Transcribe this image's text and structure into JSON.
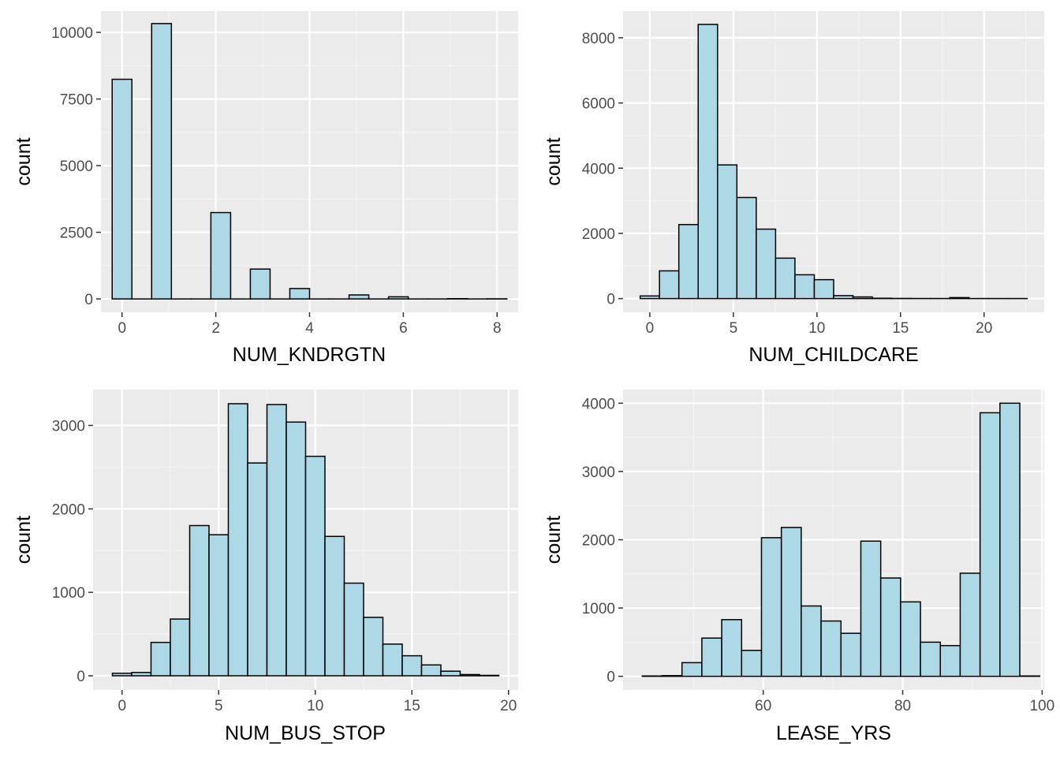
{
  "colors": {
    "panel_background": "#ebebeb",
    "grid_major": "#ffffff",
    "grid_minor": "#f5f5f5",
    "bar_fill": "#add8e6",
    "bar_outline": "#000000",
    "tick_label": "#4d4d4d",
    "axis_title": "#000000"
  },
  "chart_data": [
    {
      "type": "bar",
      "variant": "histogram",
      "xlabel": "NUM_KNDRGTN",
      "ylabel": "count",
      "xlim": [
        -0.45,
        8.45
      ],
      "ylim": [
        -500,
        10800
      ],
      "x_ticks": [
        0,
        2,
        4,
        6,
        8
      ],
      "x_tick_labels": [
        "0",
        "2",
        "4",
        "6",
        "8"
      ],
      "y_ticks": [
        0,
        2500,
        5000,
        7500,
        10000
      ],
      "y_tick_labels": [
        "0",
        "2500",
        "5000",
        "7500",
        "10000"
      ],
      "bin_width": 0.4211,
      "bins": [
        {
          "x0": -0.2105,
          "x1": 0.2105,
          "count": 8240
        },
        {
          "x0": 0.2105,
          "x1": 0.6316,
          "count": 0
        },
        {
          "x0": 0.6316,
          "x1": 1.0526,
          "count": 10330
        },
        {
          "x0": 1.0526,
          "x1": 1.4737,
          "count": 0
        },
        {
          "x0": 1.4737,
          "x1": 1.8947,
          "count": 0
        },
        {
          "x0": 1.8947,
          "x1": 2.3158,
          "count": 3240
        },
        {
          "x0": 2.3158,
          "x1": 2.7368,
          "count": 0
        },
        {
          "x0": 2.7368,
          "x1": 3.1579,
          "count": 1120
        },
        {
          "x0": 3.1579,
          "x1": 3.5789,
          "count": 0
        },
        {
          "x0": 3.5789,
          "x1": 4.0,
          "count": 390
        },
        {
          "x0": 4.0,
          "x1": 4.4211,
          "count": 0
        },
        {
          "x0": 4.4211,
          "x1": 4.8421,
          "count": 0
        },
        {
          "x0": 4.8421,
          "x1": 5.2632,
          "count": 150
        },
        {
          "x0": 5.2632,
          "x1": 5.6842,
          "count": 0
        },
        {
          "x0": 5.6842,
          "x1": 6.1053,
          "count": 80
        },
        {
          "x0": 6.1053,
          "x1": 6.5263,
          "count": 0
        },
        {
          "x0": 6.5263,
          "x1": 6.9474,
          "count": 0
        },
        {
          "x0": 6.9474,
          "x1": 7.3684,
          "count": 10
        },
        {
          "x0": 7.3684,
          "x1": 7.7895,
          "count": 0
        },
        {
          "x0": 7.7895,
          "x1": 8.2105,
          "count": 5
        }
      ]
    },
    {
      "type": "bar",
      "variant": "histogram",
      "xlabel": "NUM_CHILDCARE",
      "ylabel": "count",
      "xlim": [
        -1.6,
        23.6
      ],
      "ylim": [
        -420,
        8820
      ],
      "x_ticks": [
        0,
        5,
        10,
        15,
        20
      ],
      "x_tick_labels": [
        "0",
        "5",
        "10",
        "15",
        "20"
      ],
      "y_ticks": [
        0,
        2000,
        4000,
        6000,
        8000
      ],
      "y_tick_labels": [
        "0",
        "2000",
        "4000",
        "6000",
        "8000"
      ],
      "bin_width": 1.1579,
      "bins": [
        {
          "x0": -0.5789,
          "x1": 0.5789,
          "count": 80
        },
        {
          "x0": 0.5789,
          "x1": 1.7368,
          "count": 850
        },
        {
          "x0": 1.7368,
          "x1": 2.8947,
          "count": 2270
        },
        {
          "x0": 2.8947,
          "x1": 4.0526,
          "count": 8410
        },
        {
          "x0": 4.0526,
          "x1": 5.2105,
          "count": 4100
        },
        {
          "x0": 5.2105,
          "x1": 6.3684,
          "count": 3100
        },
        {
          "x0": 6.3684,
          "x1": 7.5263,
          "count": 2130
        },
        {
          "x0": 7.5263,
          "x1": 8.6842,
          "count": 1240
        },
        {
          "x0": 8.6842,
          "x1": 9.8421,
          "count": 730
        },
        {
          "x0": 9.8421,
          "x1": 11.0,
          "count": 580
        },
        {
          "x0": 11.0,
          "x1": 12.1579,
          "count": 90
        },
        {
          "x0": 12.1579,
          "x1": 13.3158,
          "count": 50
        },
        {
          "x0": 13.3158,
          "x1": 14.4737,
          "count": 10
        },
        {
          "x0": 14.4737,
          "x1": 15.6316,
          "count": 5
        },
        {
          "x0": 15.6316,
          "x1": 16.7895,
          "count": 3
        },
        {
          "x0": 16.7895,
          "x1": 17.9474,
          "count": 3
        },
        {
          "x0": 17.9474,
          "x1": 19.1053,
          "count": 30
        },
        {
          "x0": 19.1053,
          "x1": 20.2632,
          "count": 2
        },
        {
          "x0": 20.2632,
          "x1": 21.4211,
          "count": 2
        },
        {
          "x0": 21.4211,
          "x1": 22.5789,
          "count": 2
        }
      ]
    },
    {
      "type": "bar",
      "variant": "histogram",
      "xlabel": "NUM_BUS_STOP",
      "ylabel": "count",
      "xlim": [
        -1.5,
        20.5
      ],
      "ylim": [
        -170,
        3430
      ],
      "x_ticks": [
        0,
        5,
        10,
        15,
        20
      ],
      "x_tick_labels": [
        "0",
        "5",
        "10",
        "15",
        "20"
      ],
      "y_ticks": [
        0,
        1000,
        2000,
        3000
      ],
      "y_tick_labels": [
        "0",
        "1000",
        "2000",
        "3000"
      ],
      "bin_width": 1.0,
      "bins": [
        {
          "x0": -0.5,
          "x1": 0.5,
          "count": 30
        },
        {
          "x0": 0.5,
          "x1": 1.5,
          "count": 40
        },
        {
          "x0": 1.5,
          "x1": 2.5,
          "count": 400
        },
        {
          "x0": 2.5,
          "x1": 3.5,
          "count": 680
        },
        {
          "x0": 3.5,
          "x1": 4.5,
          "count": 1800
        },
        {
          "x0": 4.5,
          "x1": 5.5,
          "count": 1690
        },
        {
          "x0": 5.5,
          "x1": 6.5,
          "count": 3260
        },
        {
          "x0": 6.5,
          "x1": 7.5,
          "count": 2550
        },
        {
          "x0": 7.5,
          "x1": 8.5,
          "count": 3250
        },
        {
          "x0": 8.5,
          "x1": 9.5,
          "count": 3040
        },
        {
          "x0": 9.5,
          "x1": 10.5,
          "count": 2630
        },
        {
          "x0": 10.5,
          "x1": 11.5,
          "count": 1670
        },
        {
          "x0": 11.5,
          "x1": 12.5,
          "count": 1110
        },
        {
          "x0": 12.5,
          "x1": 13.5,
          "count": 700
        },
        {
          "x0": 13.5,
          "x1": 14.5,
          "count": 380
        },
        {
          "x0": 14.5,
          "x1": 15.5,
          "count": 240
        },
        {
          "x0": 15.5,
          "x1": 16.5,
          "count": 130
        },
        {
          "x0": 16.5,
          "x1": 17.5,
          "count": 55
        },
        {
          "x0": 17.5,
          "x1": 18.5,
          "count": 15
        },
        {
          "x0": 18.5,
          "x1": 19.5,
          "count": 5
        }
      ]
    },
    {
      "type": "bar",
      "variant": "histogram",
      "xlabel": "LEASE_YRS",
      "ylabel": "count",
      "xlim": [
        39.9,
        100.3
      ],
      "ylim": [
        -200,
        4200
      ],
      "x_ticks": [
        60,
        80,
        100
      ],
      "x_tick_labels": [
        "60",
        "80",
        "100"
      ],
      "y_ticks": [
        0,
        1000,
        2000,
        3000,
        4000
      ],
      "y_tick_labels": [
        "0",
        "1000",
        "2000",
        "3000",
        "4000"
      ],
      "bin_width": 2.85,
      "bins": [
        {
          "x0": 42.65,
          "x1": 45.5,
          "count": 5
        },
        {
          "x0": 45.5,
          "x1": 48.35,
          "count": 10
        },
        {
          "x0": 48.35,
          "x1": 51.2,
          "count": 200
        },
        {
          "x0": 51.2,
          "x1": 54.05,
          "count": 560
        },
        {
          "x0": 54.05,
          "x1": 56.9,
          "count": 830
        },
        {
          "x0": 56.9,
          "x1": 59.75,
          "count": 380
        },
        {
          "x0": 59.75,
          "x1": 62.6,
          "count": 2030
        },
        {
          "x0": 62.6,
          "x1": 65.45,
          "count": 2180
        },
        {
          "x0": 65.45,
          "x1": 68.3,
          "count": 1030
        },
        {
          "x0": 68.3,
          "x1": 71.15,
          "count": 810
        },
        {
          "x0": 71.15,
          "x1": 74.0,
          "count": 630
        },
        {
          "x0": 74.0,
          "x1": 76.85,
          "count": 1980
        },
        {
          "x0": 76.85,
          "x1": 79.7,
          "count": 1440
        },
        {
          "x0": 79.7,
          "x1": 82.55,
          "count": 1090
        },
        {
          "x0": 82.55,
          "x1": 85.4,
          "count": 500
        },
        {
          "x0": 85.4,
          "x1": 88.25,
          "count": 450
        },
        {
          "x0": 88.25,
          "x1": 91.1,
          "count": 1510
        },
        {
          "x0": 91.1,
          "x1": 93.95,
          "count": 3860
        },
        {
          "x0": 93.95,
          "x1": 96.8,
          "count": 4000
        },
        {
          "x0": 96.8,
          "x1": 99.65,
          "count": 5
        }
      ]
    }
  ]
}
